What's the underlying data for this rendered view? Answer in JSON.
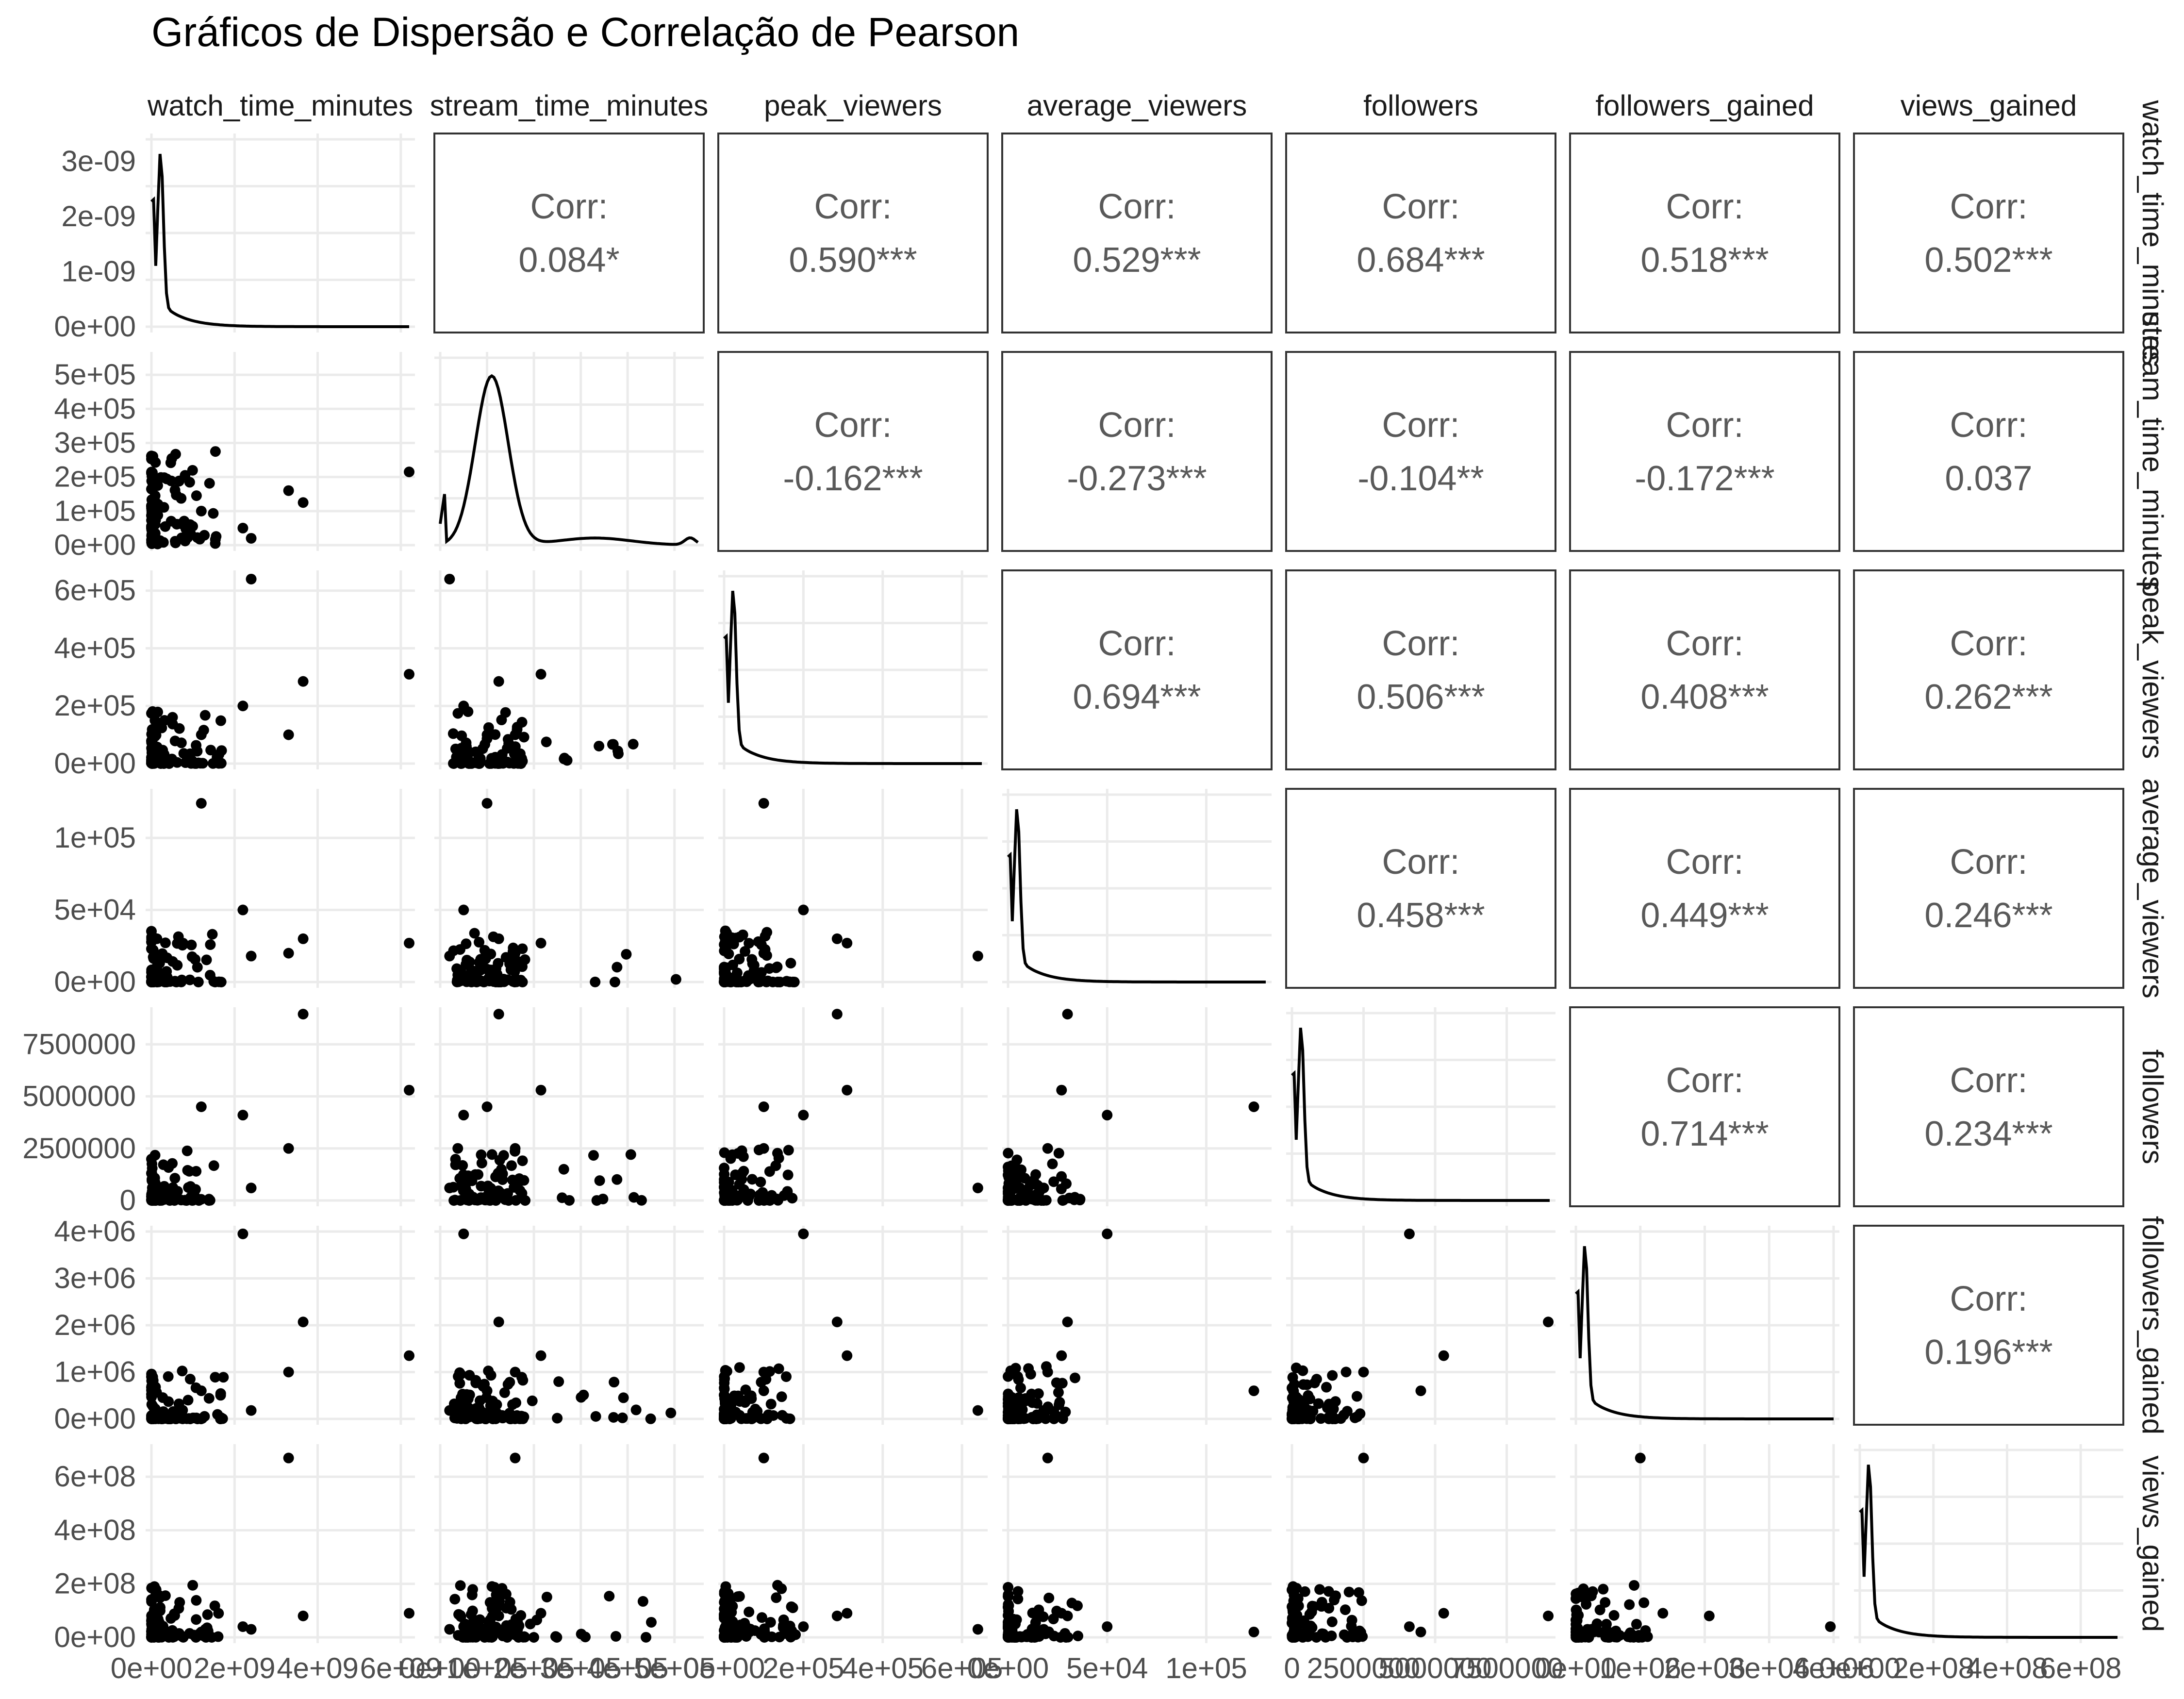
{
  "chart_data": {
    "type": "scatter",
    "title": "Gráficos de Dispersão e Correlação de Pearson",
    "variables": [
      "watch_time_minutes",
      "stream_time_minutes",
      "peak_viewers",
      "average_viewers",
      "followers",
      "followers_gained",
      "views_gained"
    ],
    "lower_panels": "scatter",
    "diagonal_panels": "density",
    "upper_panels": "pearson correlation",
    "grid": true,
    "correlation_label": "Corr:",
    "correlations": [
      {
        "row": "watch_time_minutes",
        "col": "stream_time_minutes",
        "text": "0.084*"
      },
      {
        "row": "watch_time_minutes",
        "col": "peak_viewers",
        "text": "0.590***"
      },
      {
        "row": "watch_time_minutes",
        "col": "average_viewers",
        "text": "0.529***"
      },
      {
        "row": "watch_time_minutes",
        "col": "followers",
        "text": "0.684***"
      },
      {
        "row": "watch_time_minutes",
        "col": "followers_gained",
        "text": "0.518***"
      },
      {
        "row": "watch_time_minutes",
        "col": "views_gained",
        "text": "0.502***"
      },
      {
        "row": "stream_time_minutes",
        "col": "peak_viewers",
        "text": "-0.162***"
      },
      {
        "row": "stream_time_minutes",
        "col": "average_viewers",
        "text": "-0.273***"
      },
      {
        "row": "stream_time_minutes",
        "col": "followers",
        "text": "-0.104**"
      },
      {
        "row": "stream_time_minutes",
        "col": "followers_gained",
        "text": "-0.172***"
      },
      {
        "row": "stream_time_minutes",
        "col": "views_gained",
        "text": "0.037"
      },
      {
        "row": "peak_viewers",
        "col": "average_viewers",
        "text": "0.694***"
      },
      {
        "row": "peak_viewers",
        "col": "followers",
        "text": "0.506***"
      },
      {
        "row": "peak_viewers",
        "col": "followers_gained",
        "text": "0.408***"
      },
      {
        "row": "peak_viewers",
        "col": "views_gained",
        "text": "0.262***"
      },
      {
        "row": "average_viewers",
        "col": "followers",
        "text": "0.458***"
      },
      {
        "row": "average_viewers",
        "col": "followers_gained",
        "text": "0.449***"
      },
      {
        "row": "average_viewers",
        "col": "views_gained",
        "text": "0.246***"
      },
      {
        "row": "followers",
        "col": "followers_gained",
        "text": "0.714***"
      },
      {
        "row": "followers",
        "col": "views_gained",
        "text": "0.234***"
      },
      {
        "row": "followers_gained",
        "col": "views_gained",
        "text": "0.196***"
      }
    ],
    "axes": {
      "watch_time_minutes": {
        "range": [
          0,
          6200000000
        ],
        "ticks": [
          0,
          2000000000,
          4000000000,
          6000000000
        ],
        "tick_labels": [
          "0e+00",
          "2e+09",
          "4e+09",
          "6e+09"
        ]
      },
      "stream_time_minutes": {
        "range": [
          0,
          550000
        ],
        "ticks": [
          0,
          100000,
          200000,
          300000,
          400000,
          500000
        ],
        "tick_labels": [
          "0e+00",
          "1e+05",
          "2e+05",
          "3e+05",
          "4e+05",
          "5e+05"
        ]
      },
      "peak_viewers": {
        "range": [
          0,
          650000
        ],
        "ticks": [
          0,
          200000,
          400000,
          600000
        ],
        "tick_labels": [
          "0e+00",
          "2e+05",
          "4e+05",
          "6e+05"
        ]
      },
      "average_viewers": {
        "range": [
          0,
          130000
        ],
        "ticks": [
          0,
          50000,
          100000
        ],
        "tick_labels": [
          "0e+00",
          "5e+04",
          "1e+05"
        ]
      },
      "followers": {
        "range": [
          0,
          9000000
        ],
        "ticks": [
          0,
          2500000,
          5000000,
          7500000
        ],
        "tick_labels": [
          "0",
          "2500000",
          "5000000",
          "7500000"
        ]
      },
      "followers_gained": {
        "range": [
          0,
          4000000
        ],
        "ticks": [
          0,
          1000000,
          2000000,
          3000000,
          4000000
        ],
        "tick_labels": [
          "0e+00",
          "1e+06",
          "2e+06",
          "3e+06",
          "4e+06"
        ]
      },
      "views_gained": {
        "range": [
          0,
          700000000
        ],
        "ticks": [
          0,
          200000000,
          400000000,
          600000000
        ],
        "tick_labels": [
          "0e+00",
          "2e+08",
          "4e+08",
          "6e+08"
        ]
      }
    },
    "notable_points": [
      {
        "watch_time_minutes": 6200000000,
        "stream_time_minutes": 215000,
        "peak_viewers": 310000,
        "average_viewers": 27000,
        "followers": 5300000,
        "followers_gained": 1350000,
        "views_gained": 90000000
      },
      {
        "watch_time_minutes": 3650000000,
        "stream_time_minutes": 125000,
        "peak_viewers": 285000,
        "average_viewers": 30000,
        "followers": 8950000,
        "followers_gained": 2070000,
        "views_gained": 80000000
      },
      {
        "watch_time_minutes": 2400000000,
        "stream_time_minutes": 20000,
        "peak_viewers": 640000,
        "average_viewers": 18000,
        "followers": 600000,
        "followers_gained": 180000,
        "views_gained": 30000000
      },
      {
        "watch_time_minutes": 1200000000,
        "stream_time_minutes": 100000,
        "peak_viewers": 100000,
        "average_viewers": 124000,
        "followers": 4500000,
        "followers_gained": 600000,
        "views_gained": 20000000
      },
      {
        "watch_time_minutes": 2200000000,
        "stream_time_minutes": 50000,
        "peak_viewers": 200000,
        "average_viewers": 50000,
        "followers": 4100000,
        "followers_gained": 3950000,
        "views_gained": 40000000
      },
      {
        "watch_time_minutes": 3300000000,
        "stream_time_minutes": 160000,
        "peak_viewers": 100000,
        "average_viewers": 20000,
        "followers": 2500000,
        "followers_gained": 1000000,
        "views_gained": 670000000
      }
    ]
  }
}
